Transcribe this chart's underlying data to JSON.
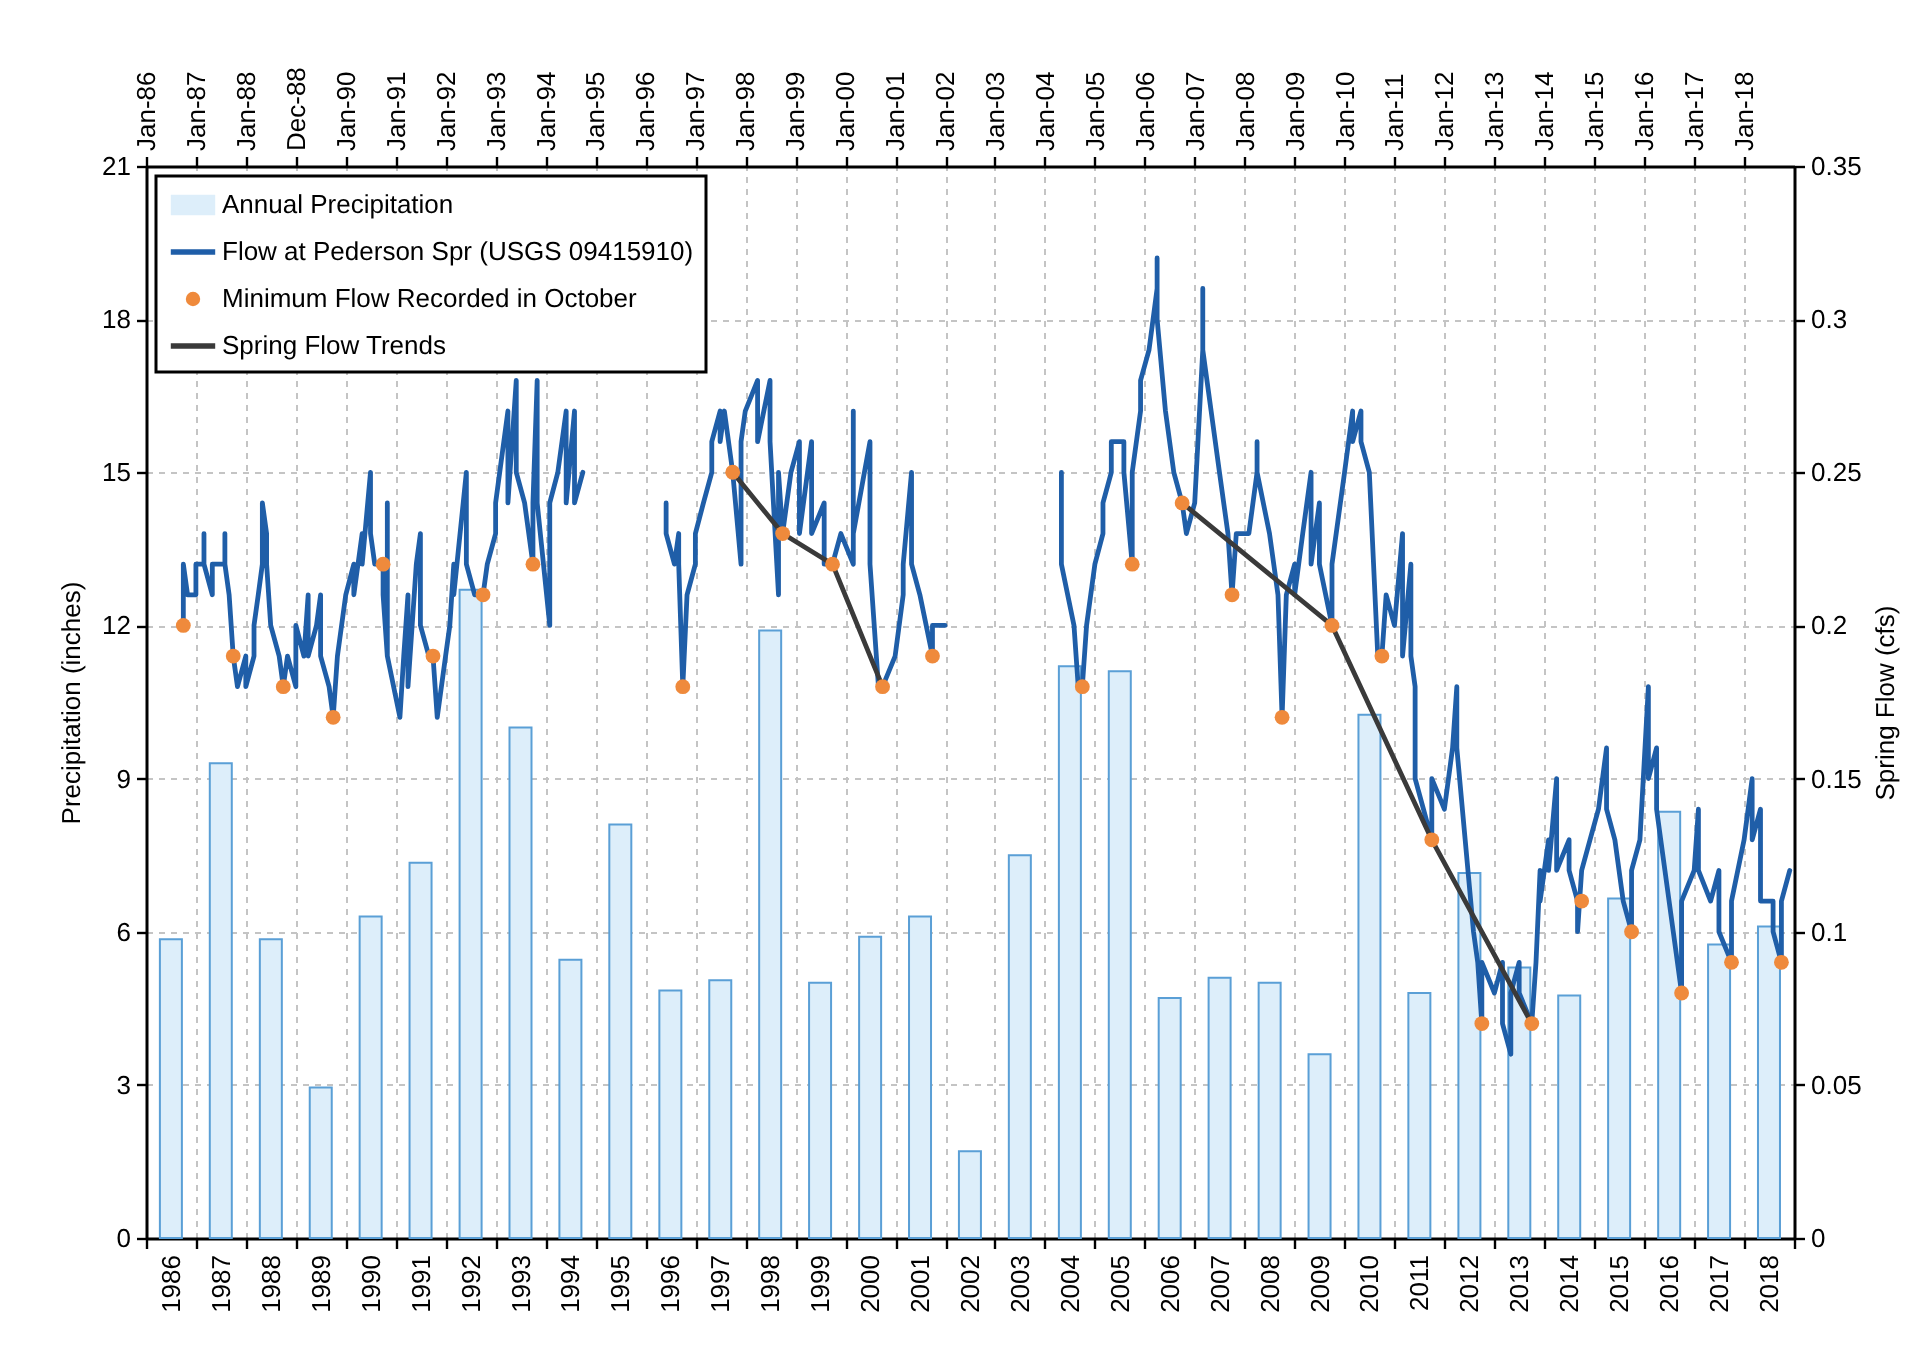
{
  "chart_data": {
    "type": "bar",
    "ylabel": "Precipitation (inches)",
    "y2label": "Spring Flow (cfs)",
    "ylim": [
      0,
      21
    ],
    "yticks": [
      0,
      3,
      6,
      9,
      12,
      15,
      18,
      21
    ],
    "y2lim": [
      0,
      0.35
    ],
    "y2ticks": [
      0,
      0.05,
      0.1,
      0.15,
      0.2,
      0.25,
      0.3,
      0.35
    ],
    "xlim": [
      "1986-01",
      "2019-01"
    ],
    "xticks": [
      {
        "value": "1986-01",
        "label": null
      },
      {
        "value": "1986-07-02",
        "label": "1986"
      },
      {
        "value": "1987-01",
        "label": null
      },
      {
        "value": "1987-07-02",
        "label": "1987"
      },
      {
        "value": "1988-01",
        "label": null
      },
      {
        "value": "1988-07-02",
        "label": "1988"
      },
      {
        "value": "1989-01",
        "label": null
      },
      {
        "value": "1989-07-02",
        "label": "1989"
      },
      {
        "value": "1990-01",
        "label": null
      },
      {
        "value": "1990-07-02",
        "label": "1990"
      },
      {
        "value": "1991-01",
        "label": null
      },
      {
        "value": "1991-07-02",
        "label": "1991"
      },
      {
        "value": "1992-01",
        "label": null
      },
      {
        "value": "1992-07-02",
        "label": "1992"
      },
      {
        "value": "1993-01",
        "label": null
      },
      {
        "value": "1993-07-02",
        "label": "1993"
      },
      {
        "value": "1994-01",
        "label": null
      },
      {
        "value": "1994-07-02",
        "label": "1994"
      },
      {
        "value": "1995-01",
        "label": null
      },
      {
        "value": "1995-07-02",
        "label": "1995"
      },
      {
        "value": "1996-01",
        "label": null
      },
      {
        "value": "1996-07-02",
        "label": "1996"
      },
      {
        "value": "1997-01",
        "label": null
      },
      {
        "value": "1997-07-02",
        "label": "1997"
      },
      {
        "value": "1998-01",
        "label": null
      },
      {
        "value": "1998-07-02",
        "label": "1998"
      },
      {
        "value": "1999-01",
        "label": null
      },
      {
        "value": "1999-07-02",
        "label": "1999"
      },
      {
        "value": "2000-01",
        "label": null
      },
      {
        "value": "2000-07-02",
        "label": "2000"
      },
      {
        "value": "2001-01",
        "label": null
      },
      {
        "value": "2001-07-02",
        "label": "2001"
      },
      {
        "value": "2002-01",
        "label": null
      },
      {
        "value": "2002-07-02",
        "label": "2002"
      },
      {
        "value": "2003-01",
        "label": null
      },
      {
        "value": "2003-07-02",
        "label": "2003"
      },
      {
        "value": "2004-01",
        "label": null
      },
      {
        "value": "2004-07-02",
        "label": "2004"
      },
      {
        "value": "2005-01",
        "label": null
      },
      {
        "value": "2005-07-02",
        "label": "2005"
      },
      {
        "value": "2006-01",
        "label": null
      },
      {
        "value": "2006-07-02",
        "label": "2006"
      },
      {
        "value": "2007-01",
        "label": null
      },
      {
        "value": "2007-07-02",
        "label": "2007"
      },
      {
        "value": "2008-01",
        "label": null
      },
      {
        "value": "2008-07-02",
        "label": "2008"
      },
      {
        "value": "2009-01",
        "label": null
      },
      {
        "value": "2009-07-02",
        "label": "2009"
      },
      {
        "value": "2010-01",
        "label": null
      },
      {
        "value": "2010-07-02",
        "label": "2010"
      },
      {
        "value": "2011-01",
        "label": null
      },
      {
        "value": "2011-07-02",
        "label": "2011"
      },
      {
        "value": "2012-01",
        "label": null
      },
      {
        "value": "2012-07-02",
        "label": "2012"
      },
      {
        "value": "2013-01",
        "label": null
      },
      {
        "value": "2013-07-02",
        "label": "2013"
      },
      {
        "value": "2014-01",
        "label": null
      },
      {
        "value": "2014-07-02",
        "label": "2014"
      },
      {
        "value": "2015-01",
        "label": null
      },
      {
        "value": "2015-07-02",
        "label": "2015"
      },
      {
        "value": "2016-01",
        "label": null
      },
      {
        "value": "2016-07-02",
        "label": "2016"
      },
      {
        "value": "2017-01",
        "label": null
      },
      {
        "value": "2017-07-02",
        "label": "2017"
      },
      {
        "value": "2018-01",
        "label": null
      },
      {
        "value": "2018-07-02",
        "label": "2018"
      },
      {
        "value": "2019-01",
        "label": null
      }
    ],
    "x2lim": [
      "1986-01",
      "2019-01"
    ],
    "x2ticks": [
      {
        "value": "1986-01",
        "label": "Jan-86"
      },
      {
        "value": "1987-01",
        "label": "Jan-87"
      },
      {
        "value": "1988-01",
        "label": "Jan-88"
      },
      {
        "value": "1988-12-31",
        "label": "Dec-88"
      },
      {
        "value": "1990-01",
        "label": "Jan-90"
      },
      {
        "value": "1991-01",
        "label": "Jan-91"
      },
      {
        "value": "1992-01",
        "label": "Jan-92"
      },
      {
        "value": "1993-01",
        "label": "Jan-93"
      },
      {
        "value": "1994-01",
        "label": "Jan-94"
      },
      {
        "value": "1995-01",
        "label": "Jan-95"
      },
      {
        "value": "1996-01",
        "label": "Jan-96"
      },
      {
        "value": "1997-01",
        "label": "Jan-97"
      },
      {
        "value": "1998-01",
        "label": "Jan-98"
      },
      {
        "value": "1999-01",
        "label": "Jan-99"
      },
      {
        "value": "2000-01",
        "label": "Jan-00"
      },
      {
        "value": "2001-01",
        "label": "Jan-01"
      },
      {
        "value": "2002-01",
        "label": "Jan-02"
      },
      {
        "value": "2003-01",
        "label": "Jan-03"
      },
      {
        "value": "2004-01",
        "label": "Jan-04"
      },
      {
        "value": "2005-01",
        "label": "Jan-05"
      },
      {
        "value": "2006-01",
        "label": "Jan-06"
      },
      {
        "value": "2007-01",
        "label": "Jan-07"
      },
      {
        "value": "2008-01",
        "label": "Jan-08"
      },
      {
        "value": "2009-01",
        "label": "Jan-09"
      },
      {
        "value": "2010-01",
        "label": "Jan-10"
      },
      {
        "value": "2011-01",
        "label": "Jan-11"
      },
      {
        "value": "2012-01",
        "label": "Jan-12"
      },
      {
        "value": "2013-01",
        "label": "Jan-13"
      },
      {
        "value": "2014-01",
        "label": "Jan-14"
      },
      {
        "value": "2015-01",
        "label": "Jan-15"
      },
      {
        "value": "2016-01",
        "label": "Jan-16"
      },
      {
        "value": "2017-01",
        "label": "Jan-17"
      },
      {
        "value": "2018-01",
        "label": "Jan-18"
      }
    ],
    "grid": true,
    "legend": "top left",
    "series": [
      {
        "name": "Annual Precipitation",
        "color": "#ddeefa",
        "x": [
          "1986-07-02",
          "1987-07-02",
          "1988-07-02",
          "1989-07-02",
          "1990-07-02",
          "1991-07-02",
          "1992-07-02",
          "1993-07-02",
          "1994-07-02",
          "1995-07-02",
          "1996-07-02",
          "1997-07-02",
          "1998-07-02",
          "1999-07-02",
          "2000-07-02",
          "2001-07-02",
          "2002-07-02",
          "2003-07-02",
          "2004-07-02",
          "2005-07-02",
          "2006-07-02",
          "2007-07-02",
          "2008-07-02",
          "2009-07-02",
          "2010-07-02",
          "2011-07-02",
          "2012-07-02",
          "2013-07-02",
          "2014-07-02",
          "2015-07-02",
          "2016-07-02",
          "2017-07-02",
          "2018-07-02"
        ],
        "values": [
          5.85,
          9.3,
          5.85,
          2.95,
          6.3,
          7.35,
          12.7,
          10.0,
          5.45,
          8.1,
          4.85,
          5.05,
          11.9,
          5.0,
          5.9,
          6.3,
          1.7,
          7.5,
          11.2,
          11.1,
          4.7,
          5.1,
          5.0,
          3.6,
          10.25,
          4.8,
          7.15,
          5.3,
          4.75,
          6.65,
          8.35,
          5.75,
          6.1
        ]
      },
      {
        "name": "Flow at Pederson Spr (USGS 09415910)",
        "type": "line",
        "axis": "y2",
        "color": "#1f5ea8",
        "x": [
          "1986-10",
          "1986-10",
          "1986-11",
          "1987-01",
          "1987-01",
          "1987-03",
          "1987-03",
          "1987-03",
          "1987-05",
          "1987-05",
          "1987-08",
          "1987-08",
          "1987-08",
          "1987-09",
          "1987-10",
          "1987-11",
          "1988-01",
          "1988-01",
          "1988-03",
          "1988-03",
          "1988-04",
          "1988-05",
          "1988-05",
          "1988-06",
          "1988-06",
          "1988-07",
          "1988-09",
          "1988-10",
          "1988-11",
          "1989-01",
          "1989-01",
          "1989-03",
          "1989-04",
          "1989-04",
          "1989-06",
          "1989-07",
          "1989-07",
          "1989-09",
          "1989-10",
          "1989-11",
          "1990-01",
          "1990-03",
          "1990-03",
          "1990-05",
          "1990-05",
          "1990-07",
          "1990-07",
          "1990-08",
          "1990-10",
          "1990-10",
          "1990-11",
          "1990-11",
          "1990-11",
          "1991-02",
          "1991-03",
          "1991-04",
          "1991-04",
          "1991-06",
          "1991-07",
          "1991-07",
          "1991-09",
          "1991-10",
          "1991-11",
          "1992-01",
          "1992-02",
          "1992-03",
          "1992-03",
          "1992-06",
          "1992-06",
          "1992-08",
          "1992-10",
          "1992-11",
          "1993-01",
          "1993-01",
          "1993-04",
          "1993-04",
          "1993-06",
          "1993-06",
          "1993-08",
          "1993-10",
          "1993-10",
          "1993-11",
          "1993-11",
          "1994-02",
          "1994-02",
          "1994-04",
          "1994-06",
          "1994-06",
          "1994-08",
          "1994-08",
          "1994-10",
          "1995-06",
          "1996-06",
          "1996-06",
          "1996-06",
          "1996-08",
          "1996-09",
          "1996-09",
          "1996-10",
          "1996-11",
          "1997-01",
          "1997-01",
          "1997-03",
          "1997-05",
          "1997-05",
          "1997-07",
          "1997-07",
          "1997-08",
          "1997-10",
          "1997-12",
          "1997-12",
          "1998-01",
          "1998-04",
          "1998-04",
          "1998-07",
          "1998-07",
          "1998-09",
          "1998-09",
          "1998-10",
          "1998-12",
          "1999-02",
          "1999-02",
          "1999-05",
          "1999-05",
          "1999-08",
          "1999-08",
          "1999-10",
          "1999-12",
          "2000-03",
          "2000-03",
          "2000-03",
          "2000-07",
          "2000-07",
          "2000-09",
          "2000-10",
          "2001-01",
          "2001-03",
          "2001-03",
          "2001-05",
          "2001-05",
          "2001-07",
          "2001-10",
          "2001-10",
          "2001-12",
          "2002-01",
          "2003-03",
          "2004-05",
          "2004-05",
          "2004-08",
          "2004-09",
          "2004-10",
          "2004-11",
          "2005-01",
          "2005-03",
          "2005-03",
          "2005-05",
          "2005-05",
          "2005-08",
          "2005-08",
          "2005-10",
          "2005-10",
          "2005-12",
          "2005-12",
          "2006-02",
          "2006-04",
          "2006-04",
          "2006-04",
          "2006-06",
          "2006-08",
          "2006-10",
          "2006-11",
          "2007-01",
          "2007-03",
          "2007-03",
          "2007-03",
          "2007-05",
          "2007-07",
          "2007-09",
          "2007-10",
          "2007-11",
          "2008-02",
          "2008-04",
          "2008-04",
          "2008-04",
          "2008-07",
          "2008-09",
          "2008-10",
          "2008-11",
          "2009-01",
          "2009-01",
          "2009-03",
          "2009-05",
          "2009-05",
          "2009-07",
          "2009-07",
          "2009-10",
          "2009-10",
          "2010-01",
          "2010-03",
          "2010-03",
          "2010-05",
          "2010-05",
          "2010-07",
          "2010-09",
          "2010-10",
          "2010-11",
          "2011-01",
          "2011-03",
          "2011-03",
          "2011-05",
          "2011-05",
          "2011-06",
          "2011-06",
          "2011-08",
          "2011-10",
          "2011-10",
          "2012-01",
          "2012-03",
          "2012-04",
          "2012-04",
          "2012-06",
          "2012-08",
          "2012-09",
          "2012-10",
          "2012-10",
          "2013-01",
          "2013-03",
          "2013-03",
          "2013-05",
          "2013-05",
          "2013-07",
          "2013-07",
          "2013-10",
          "2013-11",
          "2013-12",
          "2013-12",
          "2014-02",
          "2014-02",
          "2014-04",
          "2014-04",
          "2014-07",
          "2014-07",
          "2014-09",
          "2014-09",
          "2014-10",
          "2014-12",
          "2015-02",
          "2015-04",
          "2015-04",
          "2015-06",
          "2015-08",
          "2015-10",
          "2015-10",
          "2015-12",
          "2016-02",
          "2016-02",
          "2016-04",
          "2016-04",
          "2016-06",
          "2016-08",
          "2016-10",
          "2016-10",
          "2017-01",
          "2017-02",
          "2017-02",
          "2017-05",
          "2017-07",
          "2017-07",
          "2017-10",
          "2017-10",
          "2018-01",
          "2018-03",
          "2018-03",
          "2018-05",
          "2018-05",
          "2018-08",
          "2018-08",
          "2018-10",
          "2018-10",
          "2018-12"
        ],
        "values": [
          0.2,
          0.22,
          0.21,
          0.21,
          0.22,
          0.22,
          0.23,
          0.22,
          0.21,
          0.22,
          0.22,
          0.23,
          0.22,
          0.21,
          0.19,
          0.18,
          0.19,
          0.18,
          0.19,
          0.2,
          0.21,
          0.22,
          0.24,
          0.23,
          0.22,
          0.2,
          0.19,
          0.18,
          0.19,
          0.18,
          0.2,
          0.19,
          0.21,
          0.19,
          0.2,
          0.21,
          0.19,
          0.18,
          0.17,
          0.19,
          0.21,
          0.22,
          0.21,
          0.23,
          0.22,
          0.25,
          0.23,
          0.22,
          0.22,
          0.21,
          0.19,
          0.24,
          0.19,
          0.17,
          0.19,
          0.21,
          0.18,
          0.22,
          0.23,
          0.2,
          0.19,
          0.19,
          0.17,
          0.19,
          0.2,
          0.22,
          0.21,
          0.25,
          0.22,
          0.21,
          0.21,
          0.22,
          0.23,
          0.24,
          0.27,
          0.24,
          0.28,
          0.25,
          0.24,
          0.22,
          0.24,
          0.28,
          0.24,
          0.2,
          0.24,
          0.25,
          0.27,
          0.24,
          0.27,
          0.24,
          0.25,
          null,
          0.23,
          0.24,
          0.23,
          0.22,
          0.23,
          0.22,
          0.18,
          0.21,
          0.22,
          0.23,
          0.24,
          0.25,
          0.26,
          0.27,
          0.26,
          0.27,
          0.25,
          0.22,
          0.26,
          0.27,
          0.28,
          0.26,
          0.28,
          0.26,
          0.21,
          0.25,
          0.23,
          0.25,
          0.26,
          0.23,
          0.26,
          0.23,
          0.24,
          0.22,
          0.22,
          0.23,
          0.22,
          0.27,
          0.23,
          0.26,
          0.22,
          0.18,
          0.18,
          0.19,
          0.21,
          0.22,
          0.25,
          0.22,
          0.21,
          0.19,
          0.2,
          0.2,
          0.2,
          null,
          0.25,
          0.22,
          0.2,
          0.18,
          0.18,
          0.2,
          0.22,
          0.23,
          0.24,
          0.25,
          0.26,
          0.26,
          0.25,
          0.22,
          0.25,
          0.27,
          0.28,
          0.29,
          0.31,
          0.32,
          0.3,
          0.27,
          0.25,
          0.24,
          0.23,
          0.24,
          0.29,
          0.31,
          0.29,
          0.27,
          0.25,
          0.23,
          0.21,
          0.23,
          0.23,
          0.25,
          0.26,
          0.25,
          0.23,
          0.21,
          0.17,
          0.21,
          0.22,
          0.21,
          0.23,
          0.25,
          0.22,
          0.24,
          0.22,
          0.2,
          0.22,
          0.25,
          0.27,
          0.26,
          0.27,
          0.26,
          0.25,
          0.19,
          0.19,
          0.21,
          0.2,
          0.23,
          0.19,
          0.22,
          0.19,
          0.18,
          0.15,
          0.14,
          0.13,
          0.15,
          0.14,
          0.16,
          0.18,
          0.16,
          0.13,
          0.1,
          0.09,
          0.07,
          0.09,
          0.08,
          0.09,
          0.07,
          0.06,
          0.08,
          0.09,
          0.08,
          0.07,
          0.09,
          0.12,
          0.11,
          0.13,
          0.12,
          0.15,
          0.12,
          0.13,
          0.12,
          0.11,
          0.1,
          0.12,
          0.13,
          0.14,
          0.16,
          0.14,
          0.13,
          0.11,
          0.1,
          0.12,
          0.13,
          0.18,
          0.15,
          0.16,
          0.14,
          0.12,
          0.1,
          0.08,
          0.11,
          0.12,
          0.14,
          0.12,
          0.11,
          0.12,
          0.1,
          0.09,
          0.11,
          0.13,
          0.15,
          0.13,
          0.14,
          0.11,
          0.11,
          0.1,
          0.09,
          0.11,
          0.12
        ]
      },
      {
        "name": "Minimum Flow Recorded in October",
        "type": "scatter",
        "axis": "y2",
        "color": "#ef8a3c",
        "marker": "circle",
        "x": [
          "1986-10",
          "1987-10",
          "1988-10",
          "1989-10",
          "1990-10",
          "1991-10",
          "1992-10",
          "1993-10",
          "1996-10",
          "1997-10",
          "1998-10",
          "1999-10",
          "2000-10",
          "2001-10",
          "2004-10",
          "2005-10",
          "2006-10",
          "2007-10",
          "2008-10",
          "2009-10",
          "2010-10",
          "2011-10",
          "2012-10",
          "2013-10",
          "2014-10",
          "2015-10",
          "2016-10",
          "2017-10",
          "2018-10"
        ],
        "values": [
          0.2,
          0.19,
          0.18,
          0.17,
          0.22,
          0.19,
          0.21,
          0.22,
          0.18,
          0.25,
          0.23,
          0.22,
          0.18,
          0.19,
          0.18,
          0.22,
          0.24,
          0.21,
          0.17,
          0.2,
          0.19,
          0.13,
          0.07,
          0.07,
          0.11,
          0.1,
          0.08,
          0.09,
          0.09
        ]
      },
      {
        "name": "Spring Flow Trends",
        "type": "line",
        "axis": "y2",
        "color": "#3a3a3a",
        "x": [
          "1997-10",
          "1998-10",
          "1999-10",
          "2000-10",
          "2003-06",
          "2006-10",
          "2009-10",
          "2011-10",
          "2013-10"
        ],
        "values": [
          0.25,
          0.23,
          0.22,
          0.18,
          null,
          0.24,
          0.2,
          0.13,
          0.07
        ]
      }
    ]
  }
}
